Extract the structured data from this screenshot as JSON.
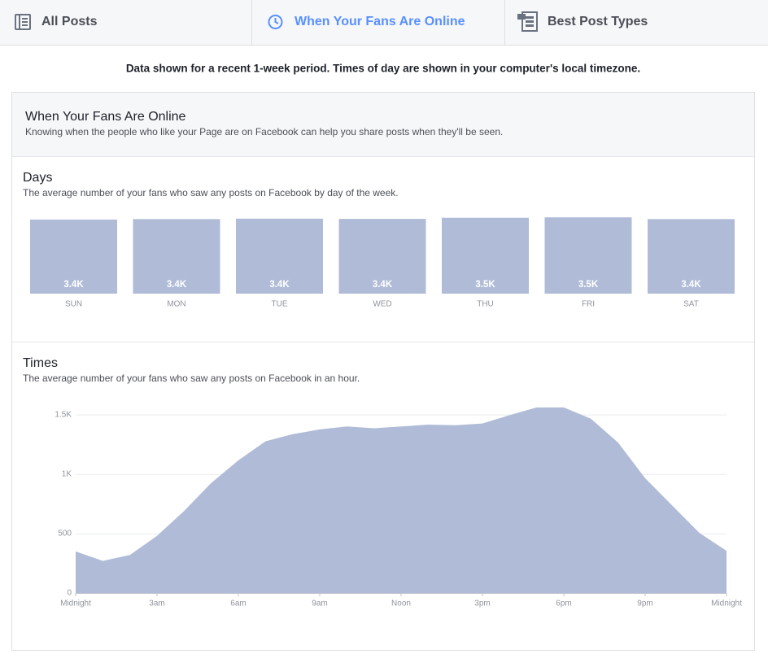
{
  "tabs": [
    {
      "label": "All Posts",
      "active": false
    },
    {
      "label": "When Your Fans Are Online",
      "active": true
    },
    {
      "label": "Best Post Types",
      "active": false
    }
  ],
  "notice": "Data shown for a recent 1-week period. Times of day are shown in your computer's local timezone.",
  "panel": {
    "title": "When Your Fans Are Online",
    "subtitle": "Knowing when the people who like your Page are on Facebook can help you share posts when they'll be seen."
  },
  "chart_data": [
    {
      "type": "bar",
      "title": "Days",
      "subtitle": "The average number of your fans who saw any posts on Facebook by day of the week.",
      "categories": [
        "SUN",
        "MON",
        "TUE",
        "WED",
        "THU",
        "FRI",
        "SAT"
      ],
      "values": [
        3400,
        3420,
        3440,
        3430,
        3480,
        3500,
        3420
      ],
      "value_labels": [
        "3.4K",
        "3.4K",
        "3.4K",
        "3.4K",
        "3.5K",
        "3.5K",
        "3.4K"
      ],
      "color": "#b0bcd7"
    },
    {
      "type": "area",
      "title": "Times",
      "subtitle": "The average number of your fans who saw any posts on Facebook in an hour.",
      "x": [
        0,
        1,
        2,
        3,
        4,
        5,
        6,
        7,
        8,
        9,
        10,
        11,
        12,
        13,
        14,
        15,
        16,
        17,
        18,
        19,
        20,
        21,
        22,
        23,
        24
      ],
      "values": [
        350,
        270,
        320,
        480,
        690,
        925,
        1115,
        1275,
        1335,
        1375,
        1400,
        1385,
        1400,
        1415,
        1410,
        1425,
        1495,
        1560,
        1560,
        1465,
        1265,
        965,
        735,
        505,
        355
      ],
      "xlim": [
        0,
        24
      ],
      "xticks": [
        {
          "value": 0,
          "label": "Midnight"
        },
        {
          "value": 3,
          "label": "3am"
        },
        {
          "value": 6,
          "label": "6am"
        },
        {
          "value": 9,
          "label": "9am"
        },
        {
          "value": 12,
          "label": "Noon"
        },
        {
          "value": 15,
          "label": "3pm"
        },
        {
          "value": 18,
          "label": "6pm"
        },
        {
          "value": 21,
          "label": "9pm"
        },
        {
          "value": 24,
          "label": "Midnight"
        }
      ],
      "ylim": [
        0,
        1600
      ],
      "yticks": [
        0,
        500,
        {
          "value": 1000,
          "label": "1K"
        },
        {
          "value": 1500,
          "label": "1.5K"
        }
      ],
      "grid": true,
      "color": "#b0bcd7"
    }
  ]
}
